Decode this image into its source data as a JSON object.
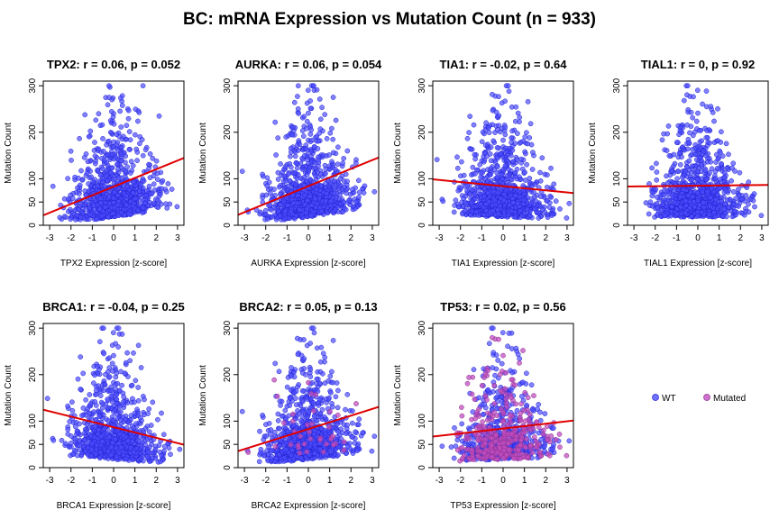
{
  "figure": {
    "title": "BC: mRNA Expression vs Mutation Count (n = 933)"
  },
  "legend": {
    "items": [
      {
        "label": "WT",
        "color": "#4d4dff"
      },
      {
        "label": "Mutated",
        "color": "#c04dc0"
      }
    ]
  },
  "chart_data": [
    {
      "type": "scatter",
      "gene": "TPX2",
      "title": "TPX2: r = 0.06, p = 0.052",
      "xlabel": "TPX2 Expression [z-score]",
      "ylabel": "Mutation Count",
      "xlim": [
        -3.3,
        3.3
      ],
      "ylim": [
        0,
        310
      ],
      "xticks": [
        -3,
        -2,
        -1,
        0,
        1,
        2,
        3
      ],
      "yticks": [
        0,
        50,
        100,
        200,
        300
      ],
      "fit": {
        "slope": 18.7,
        "intercept": 83
      },
      "n_points": 933,
      "mutated_fraction": 0
    },
    {
      "type": "scatter",
      "gene": "AURKA",
      "title": "AURKA: r = 0.06, p = 0.054",
      "xlabel": "AURKA Expression [z-score]",
      "ylabel": "Mutation Count",
      "xlim": [
        -3.3,
        3.3
      ],
      "ylim": [
        0,
        310
      ],
      "xticks": [
        -3,
        -2,
        -1,
        0,
        1,
        2,
        3
      ],
      "yticks": [
        0,
        50,
        100,
        200,
        300
      ],
      "fit": {
        "slope": 18.7,
        "intercept": 84
      },
      "n_points": 933,
      "mutated_fraction": 0
    },
    {
      "type": "scatter",
      "gene": "TIA1",
      "title": "TIA1: r = -0.02, p = 0.64",
      "xlabel": "TIA1 Expression [z-score]",
      "ylabel": "Mutation Count",
      "xlim": [
        -3.3,
        3.3
      ],
      "ylim": [
        0,
        310
      ],
      "xticks": [
        -3,
        -2,
        -1,
        0,
        1,
        2,
        3
      ],
      "yticks": [
        0,
        50,
        100,
        200,
        300
      ],
      "fit": {
        "slope": -4.5,
        "intercept": 84
      },
      "n_points": 933,
      "mutated_fraction": 0
    },
    {
      "type": "scatter",
      "gene": "TIAL1",
      "title": "TIAL1: r = 0, p = 0.92",
      "xlabel": "TIAL1 Expression [z-score]",
      "ylabel": "Mutation Count",
      "xlim": [
        -3.3,
        3.3
      ],
      "ylim": [
        0,
        310
      ],
      "xticks": [
        -3,
        -2,
        -1,
        0,
        1,
        2,
        3
      ],
      "yticks": [
        0,
        50,
        100,
        200,
        300
      ],
      "fit": {
        "slope": 0.5,
        "intercept": 85
      },
      "n_points": 933,
      "mutated_fraction": 0
    },
    {
      "type": "scatter",
      "gene": "BRCA1",
      "title": "BRCA1: r = -0.04, p = 0.25",
      "xlabel": "BRCA1 Expression [z-score]",
      "ylabel": "Mutation Count",
      "xlim": [
        -3.3,
        3.3
      ],
      "ylim": [
        0,
        310
      ],
      "xticks": [
        -3,
        -2,
        -1,
        0,
        1,
        2,
        3
      ],
      "yticks": [
        0,
        50,
        100,
        200,
        300
      ],
      "fit": {
        "slope": -11.4,
        "intercept": 87
      },
      "n_points": 933,
      "mutated_fraction": 0
    },
    {
      "type": "scatter",
      "gene": "BRCA2",
      "title": "BRCA2: r = 0.05, p = 0.13",
      "xlabel": "BRCA2 Expression [z-score]",
      "ylabel": "Mutation Count",
      "xlim": [
        -3.3,
        3.3
      ],
      "ylim": [
        0,
        310
      ],
      "xticks": [
        -3,
        -2,
        -1,
        0,
        1,
        2,
        3
      ],
      "yticks": [
        0,
        50,
        100,
        200,
        300
      ],
      "fit": {
        "slope": 14.4,
        "intercept": 83
      },
      "n_points": 933,
      "mutated_fraction": 0.03
    },
    {
      "type": "scatter",
      "gene": "TP53",
      "title": "TP53: r = 0.02, p = 0.56",
      "xlabel": "TP53 Expression [z-score]",
      "ylabel": "Mutation Count",
      "xlim": [
        -3.3,
        3.3
      ],
      "ylim": [
        0,
        310
      ],
      "xticks": [
        -3,
        -2,
        -1,
        0,
        1,
        2,
        3
      ],
      "yticks": [
        0,
        50,
        100,
        200,
        300
      ],
      "fit": {
        "slope": 5.2,
        "intercept": 84
      },
      "n_points": 933,
      "mutated_fraction": 0.35
    }
  ]
}
